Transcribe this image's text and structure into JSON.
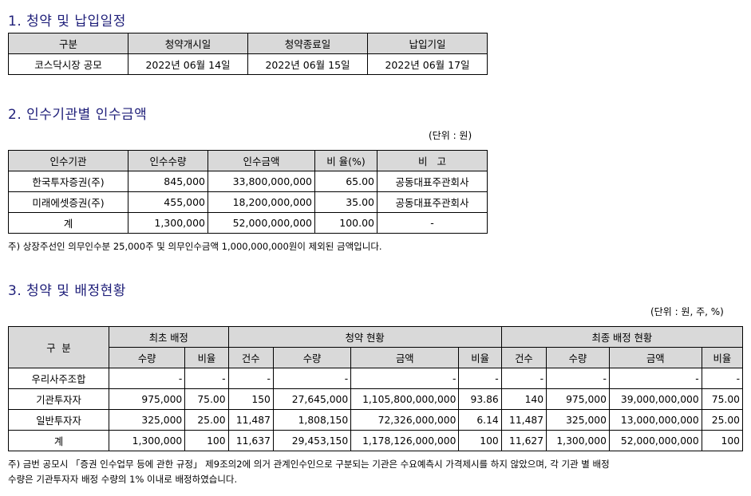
{
  "section1": {
    "title": "1. 청약 및 납입일정",
    "headers": [
      "구분",
      "청약개시일",
      "청약종료일",
      "납입기일"
    ],
    "row": [
      "코스닥시장 공모",
      "2022년 06월 14일",
      "2022년 06월 15일",
      "2022년 06월 17일"
    ]
  },
  "section2": {
    "title": "2. 인수기관별 인수금액",
    "unit": "(단위 : 원)",
    "headers": [
      "인수기관",
      "인수수량",
      "인수금액",
      "비 율(%)",
      "비   고"
    ],
    "rows": [
      [
        "한국투자증권(주)",
        "845,000",
        "33,800,000,000",
        "65.00",
        "공동대표주관회사"
      ],
      [
        "미래에셋증권(주)",
        "455,000",
        "18,200,000,000",
        "35.00",
        "공동대표주관회사"
      ],
      [
        "계",
        "1,300,000",
        "52,000,000,000",
        "100.00",
        "-"
      ]
    ],
    "note": "주) 상장주선인 의무인수분 25,000주 및 의무인수금액 1,000,000,000원이 제외된 금액입니다."
  },
  "section3": {
    "title": "3. 청약 및 배정현황",
    "unit": "(단위 : 원, 주, %)",
    "header_top": [
      "구  분",
      "최초 배정",
      "청약 현황",
      "최종 배정 현황"
    ],
    "header_sub": [
      "수량",
      "비율",
      "건수",
      "수량",
      "금액",
      "비율",
      "건수",
      "수량",
      "금액",
      "비율"
    ],
    "rows": [
      [
        "우리사주조합",
        "-",
        "-",
        "-",
        "-",
        "-",
        "-",
        "-",
        "-",
        "-",
        "-"
      ],
      [
        "기관투자자",
        "975,000",
        "75.00",
        "150",
        "27,645,000",
        "1,105,800,000,000",
        "93.86",
        "140",
        "975,000",
        "39,000,000,000",
        "75.00"
      ],
      [
        "일반투자자",
        "325,000",
        "25.00",
        "11,487",
        "1,808,150",
        "72,326,000,000",
        "6.14",
        "11,487",
        "325,000",
        "13,000,000,000",
        "25.00"
      ],
      [
        "계",
        "1,300,000",
        "100",
        "11,637",
        "29,453,150",
        "1,178,126,000,000",
        "100",
        "11,627",
        "1,300,000",
        "52,000,000,000",
        "100"
      ]
    ],
    "note_line1": "주) 금번 공모시 「증권 인수업무 등에 관한 규정」 제9조의2에 의거 관계인수인으로 구분되는 기관은 수요예측시 가격제시를 하지 않았으며, 각 기관 별 배정",
    "note_line2": "수량은 기관투자자 배정 수량의 1% 이내로 배정하였습니다."
  }
}
